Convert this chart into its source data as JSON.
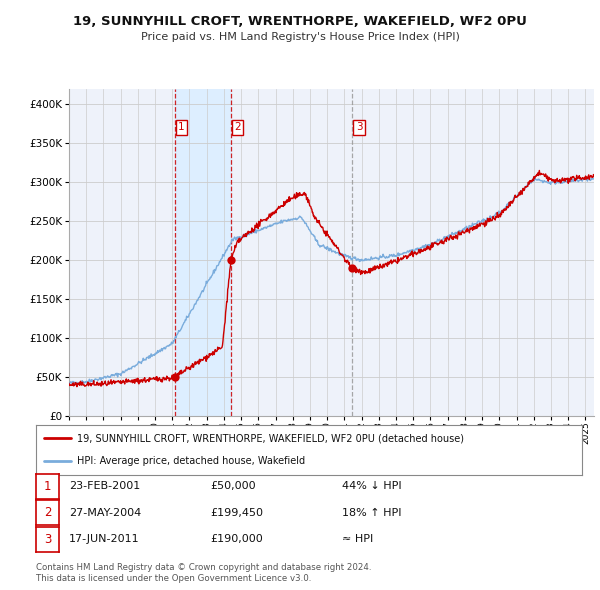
{
  "title": "19, SUNNYHILL CROFT, WRENTHORPE, WAKEFIELD, WF2 0PU",
  "subtitle": "Price paid vs. HM Land Registry's House Price Index (HPI)",
  "xlim_start": 1995.0,
  "xlim_end": 2025.5,
  "ylim": [
    0,
    420000
  ],
  "yticks": [
    0,
    50000,
    100000,
    150000,
    200000,
    250000,
    300000,
    350000,
    400000
  ],
  "ytick_labels": [
    "£0",
    "£50K",
    "£100K",
    "£150K",
    "£200K",
    "£250K",
    "£300K",
    "£350K",
    "£400K"
  ],
  "sale_dates": [
    2001.14,
    2004.4,
    2011.46
  ],
  "sale_prices": [
    50000,
    199450,
    190000
  ],
  "sale_labels": [
    "1",
    "2",
    "3"
  ],
  "dashed_colors": [
    "#cc0000",
    "#cc0000",
    "#999999"
  ],
  "sale_marker_color": "#cc0000",
  "hpi_line_color": "#7aacdc",
  "price_line_color": "#cc0000",
  "shaded_regions": [
    [
      2001.14,
      2004.4
    ]
  ],
  "shaded_color": "#ddeeff",
  "background_color": "#eef2fa",
  "grid_color": "#cccccc",
  "legend_line1": "19, SUNNYHILL CROFT, WRENTHORPE, WAKEFIELD, WF2 0PU (detached house)",
  "legend_line2": "HPI: Average price, detached house, Wakefield",
  "table_rows": [
    [
      "1",
      "23-FEB-2001",
      "£50,000",
      "44% ↓ HPI"
    ],
    [
      "2",
      "27-MAY-2004",
      "£199,450",
      "18% ↑ HPI"
    ],
    [
      "3",
      "17-JUN-2011",
      "£190,000",
      "≈ HPI"
    ]
  ],
  "footnote1": "Contains HM Land Registry data © Crown copyright and database right 2024.",
  "footnote2": "This data is licensed under the Open Government Licence v3.0."
}
